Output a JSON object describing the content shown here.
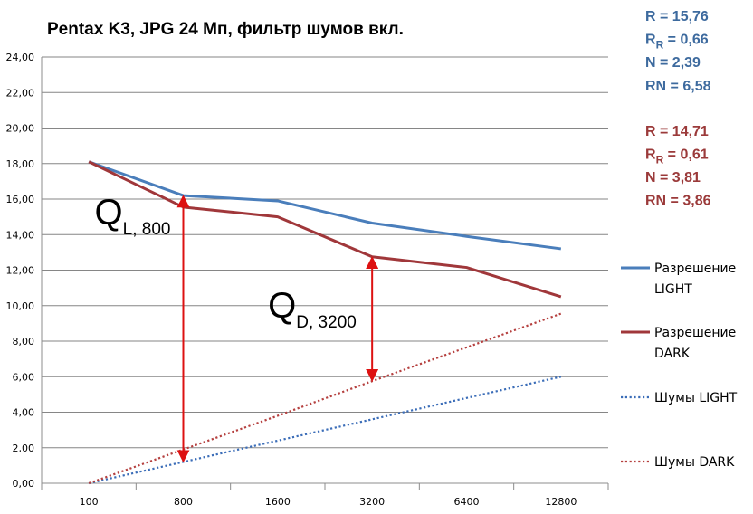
{
  "chart_data": {
    "type": "line",
    "title": "Pentax K3, JPG 24 Мп, фильтр шумов вкл.",
    "categories": [
      "100",
      "800",
      "1600",
      "3200",
      "6400",
      "12800"
    ],
    "ylim": [
      0,
      24
    ],
    "ytick_labels": [
      "0,00",
      "2,00",
      "4,00",
      "6,00",
      "8,00",
      "10,00",
      "12,00",
      "14,00",
      "16,00",
      "18,00",
      "20,00",
      "22,00",
      "24,00"
    ],
    "grid": true,
    "legend_position": "right",
    "series": [
      {
        "name": "Разрешение LIGHT",
        "legend_lines": [
          "Разрешение",
          "LIGHT"
        ],
        "color": "#4a7ebb",
        "style": "solid",
        "values": [
          18.1,
          16.2,
          15.9,
          14.65,
          13.9,
          13.2
        ]
      },
      {
        "name": "Разрешение DARK",
        "legend_lines": [
          "Разрешение",
          "DARK"
        ],
        "color": "#a0373a",
        "style": "solid",
        "values": [
          18.1,
          15.55,
          15.0,
          12.75,
          12.15,
          10.5
        ]
      },
      {
        "name": "Шумы LIGHT",
        "legend_lines": [
          "Шумы LIGHT"
        ],
        "color": "#3b6db8",
        "style": "dotted",
        "values": [
          0.0,
          1.2,
          2.4,
          3.6,
          4.8,
          6.0
        ]
      },
      {
        "name": "Шумы DARK",
        "legend_lines": [
          "Шумы DARK"
        ],
        "color": "#b5403f",
        "style": "dotted",
        "values": [
          0.0,
          1.9,
          3.8,
          5.75,
          7.65,
          9.55
        ]
      }
    ],
    "annotations": [
      {
        "main": "Q",
        "sub": "L, 800",
        "category_index": 1,
        "from_value": 1.2,
        "to_value": 16.2,
        "color": "#dd1111"
      },
      {
        "main": "Q",
        "sub": "D, 3200",
        "category_index": 3,
        "from_value": 5.75,
        "to_value": 12.75,
        "color": "#dd1111"
      }
    ],
    "stats": [
      {
        "color": "#3d6a9e",
        "lines": [
          {
            "main": "R = 15,76",
            "sub": ""
          },
          {
            "main": "R",
            "sub": "R",
            "tail": " = 0,66"
          },
          {
            "main": "N = 2,39",
            "sub": ""
          },
          {
            "main": "RN = 6,58",
            "sub": ""
          }
        ]
      },
      {
        "color": "#9b3a3a",
        "lines": [
          {
            "main": "R = 14,71",
            "sub": ""
          },
          {
            "main": "R",
            "sub": "R",
            "tail": " = 0,61"
          },
          {
            "main": "N = 3,81",
            "sub": ""
          },
          {
            "main": "RN = 3,86",
            "sub": ""
          }
        ]
      }
    ]
  }
}
